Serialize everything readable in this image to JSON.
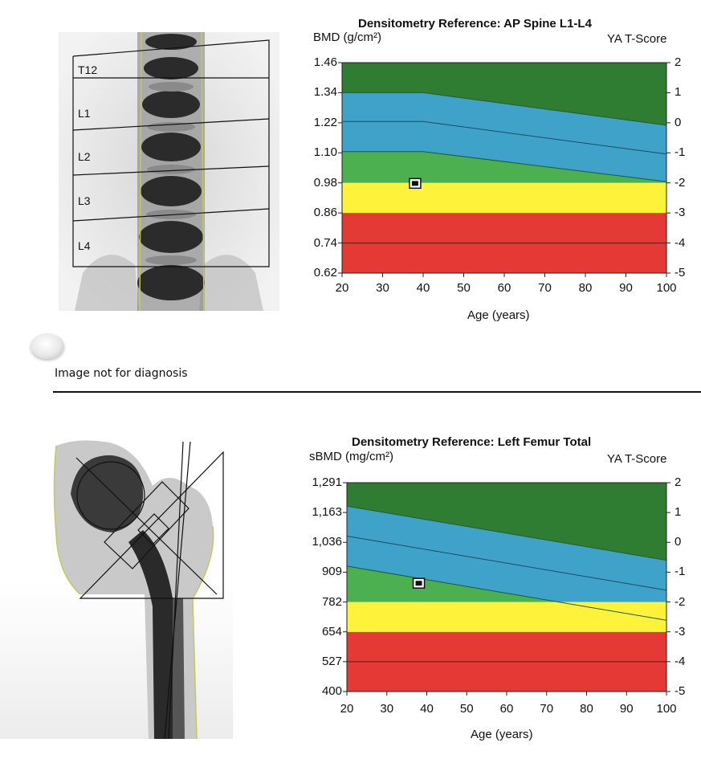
{
  "chart_data": [
    {
      "type": "area",
      "title": "Densitometry Reference: AP Spine L1-L4",
      "ylabel": "BMD (g/cm²)",
      "y2label": "YA T-Score",
      "xlabel": "Age (years)",
      "xlim": [
        20,
        100
      ],
      "ylim": [
        0.62,
        1.46
      ],
      "y2lim": [
        -5,
        2
      ],
      "x_ticks": [
        20,
        30,
        40,
        50,
        60,
        70,
        80,
        90,
        100
      ],
      "y_tick_labels": [
        "1.46",
        "1.34",
        "1.22",
        "1.10",
        "0.98",
        "0.86",
        "0.74",
        "0.62"
      ],
      "y2_tick_labels": [
        "2",
        "1",
        "0",
        "-1",
        "-2",
        "-3",
        "-4",
        "-5"
      ],
      "grid": false,
      "bands": [
        {
          "color": "#2e7d32",
          "fill": "top"
        },
        {
          "color": "#3fa2c8"
        },
        {
          "color": "#4caf50"
        },
        {
          "color": "#fff23a"
        },
        {
          "color": "#e53935",
          "fill": "bottom"
        }
      ],
      "band_boundaries": {
        "green_blue": {
          "x": [
            20,
            40,
            100
          ],
          "y": [
            1.34,
            1.34,
            1.21
          ]
        },
        "blue_mid_line": {
          "x": [
            20,
            40,
            100
          ],
          "y": [
            1.225,
            1.225,
            1.095
          ]
        },
        "blue_lightgreen": {
          "x": [
            20,
            40,
            100
          ],
          "y": [
            1.105,
            1.105,
            0.985
          ]
        },
        "lightgreen_yellow": {
          "x": [
            20,
            100
          ],
          "y": [
            0.98,
            0.98
          ]
        },
        "yellow_red": {
          "x": [
            20,
            100
          ],
          "y": [
            0.86,
            0.86
          ]
        },
        "red_line": {
          "x": [
            20,
            100
          ],
          "y": [
            0.74,
            0.74
          ]
        }
      },
      "marker": {
        "x": 38,
        "y": 0.978
      }
    },
    {
      "type": "area",
      "title": "Densitometry Reference: Left Femur Total",
      "ylabel": "sBMD (mg/cm²)",
      "y2label": "YA T-Score",
      "xlabel": "Age (years)",
      "xlim": [
        20,
        100
      ],
      "ylim": [
        400,
        1291
      ],
      "y2lim": [
        -5,
        2
      ],
      "x_ticks": [
        20,
        30,
        40,
        50,
        60,
        70,
        80,
        90,
        100
      ],
      "y_tick_labels": [
        "1,291",
        "1,163",
        "1,036",
        "909",
        "782",
        "654",
        "527",
        "400"
      ],
      "y2_tick_labels": [
        "2",
        "1",
        "0",
        "-1",
        "-2",
        "-3",
        "-4",
        "-5"
      ],
      "grid": false,
      "bands": [
        {
          "color": "#2e7d32",
          "fill": "top"
        },
        {
          "color": "#3fa2c8"
        },
        {
          "color": "#4caf50"
        },
        {
          "color": "#fff23a"
        },
        {
          "color": "#e53935",
          "fill": "bottom"
        }
      ],
      "band_boundaries": {
        "green_blue": {
          "x": [
            20,
            100
          ],
          "y": [
            1191,
            960
          ]
        },
        "blue_mid_line": {
          "x": [
            20,
            100
          ],
          "y": [
            1063,
            832
          ]
        },
        "blue_lightgreen": {
          "x": [
            20,
            100
          ],
          "y": [
            935,
            704
          ]
        },
        "lightgreen_yellow": {
          "x": [
            20,
            100
          ],
          "y": [
            782,
            782
          ]
        },
        "yellow_red": {
          "x": [
            20,
            100
          ],
          "y": [
            654,
            654
          ]
        },
        "red_line": {
          "x": [
            20,
            100
          ],
          "y": [
            527,
            527
          ]
        }
      },
      "marker": {
        "x": 38,
        "y": 862
      }
    }
  ],
  "spine_labels": [
    "T12",
    "L1",
    "L2",
    "L3",
    "L4"
  ],
  "caption": "Image not for diagnosis"
}
